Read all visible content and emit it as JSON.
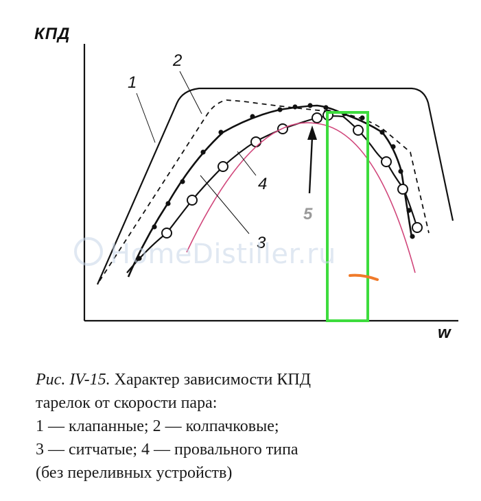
{
  "axes": {
    "y_label": "КПД",
    "x_label": "w"
  },
  "curve_labels": [
    {
      "id": "1",
      "text": "1"
    },
    {
      "id": "2",
      "text": "2"
    },
    {
      "id": "3",
      "text": "3"
    },
    {
      "id": "4",
      "text": "4"
    },
    {
      "id": "5",
      "text": "5"
    }
  ],
  "caption": {
    "prefix": "Рис. IV-15.",
    "line1_rest": " Характер зависимости КПД",
    "line2": "тарелок от скорости пара:",
    "line3": "1 — клапанные; 2 — колпачковые;",
    "line4": "3 — ситчатые; 4 — провального типа",
    "line5": "(без переливных устройств)"
  },
  "watermark": "HomeDistiller.ru",
  "colors": {
    "ink": "#111111",
    "pink_curve": "#d0457a",
    "highlight_box": "#3ddc3d",
    "orange_mark": "#f07a2a",
    "label5": "#9a9a9a"
  },
  "icons": [
    "arrow-up-icon",
    "watermark-logo-icon"
  ]
}
